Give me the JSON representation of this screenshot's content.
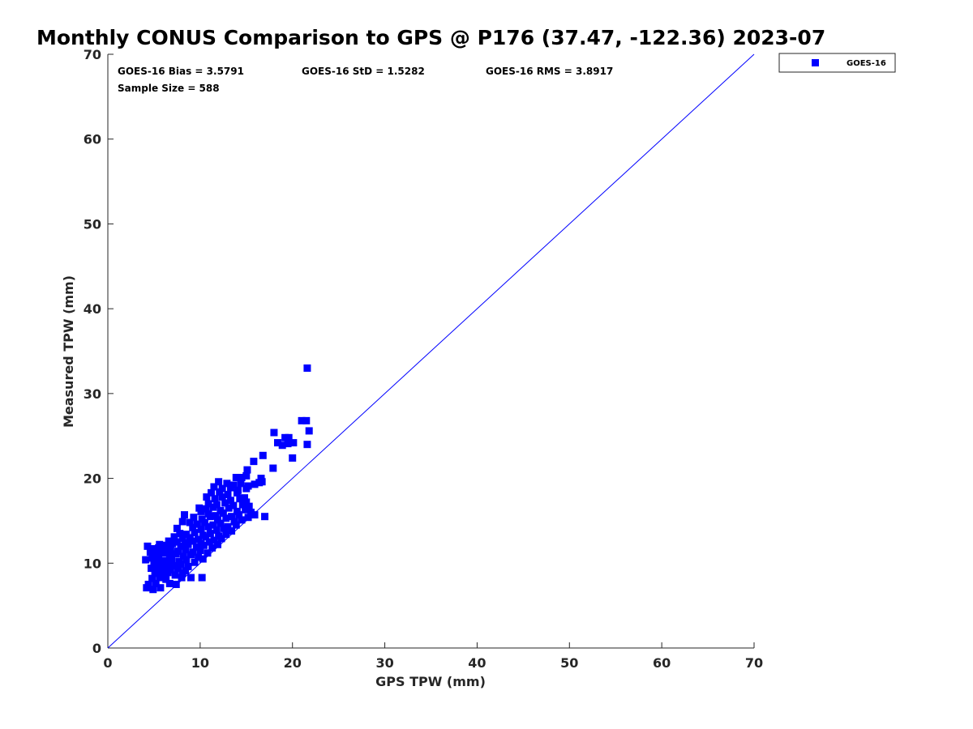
{
  "chart_data": {
    "type": "scatter",
    "title": "Monthly CONUS Comparison to GPS @ P176 (37.47, -122.36) 2023-07",
    "xlabel": "GPS TPW (mm)",
    "ylabel": "Measured TPW (mm)",
    "xlim": [
      0,
      70
    ],
    "ylim": [
      0,
      70
    ],
    "xticks": [
      "0",
      "10",
      "20",
      "30",
      "40",
      "50",
      "60",
      "70"
    ],
    "yticks": [
      "0",
      "10",
      "20",
      "30",
      "40",
      "50",
      "60",
      "70"
    ],
    "grid": false,
    "legend_position": "outside-top-right",
    "stats": {
      "bias": "GOES-16 Bias = 3.5791",
      "std": "GOES-16 StD = 1.5282",
      "rms": "GOES-16 RMS = 3.8917",
      "sample": "Sample Size = 588"
    },
    "reference_line": {
      "x": [
        0,
        70
      ],
      "y": [
        0,
        70
      ],
      "color": "#0000ff"
    },
    "series": [
      {
        "name": "GOES-16",
        "color": "#0000ff",
        "marker": "square",
        "points": [
          [
            21.6,
            33.0
          ],
          [
            21.0,
            26.8
          ],
          [
            21.5,
            26.8
          ],
          [
            21.8,
            25.6
          ],
          [
            18.0,
            25.4
          ],
          [
            19.2,
            24.8
          ],
          [
            19.6,
            24.8
          ],
          [
            18.4,
            24.2
          ],
          [
            19.5,
            24.1
          ],
          [
            20.1,
            24.2
          ],
          [
            18.9,
            23.9
          ],
          [
            21.6,
            24.0
          ],
          [
            16.8,
            22.7
          ],
          [
            20.0,
            22.4
          ],
          [
            15.8,
            22.0
          ],
          [
            17.9,
            21.2
          ],
          [
            15.1,
            21.0
          ],
          [
            13.9,
            20.1
          ],
          [
            14.5,
            20.1
          ],
          [
            15.0,
            20.3
          ],
          [
            16.6,
            20.0
          ],
          [
            16.7,
            19.6
          ],
          [
            12.0,
            19.6
          ],
          [
            12.9,
            19.4
          ],
          [
            13.6,
            19.2
          ],
          [
            14.4,
            19.4
          ],
          [
            15.2,
            19.1
          ],
          [
            15.9,
            19.3
          ],
          [
            16.4,
            19.5
          ],
          [
            11.5,
            19.0
          ],
          [
            12.4,
            18.8
          ],
          [
            13.3,
            18.9
          ],
          [
            14.1,
            18.6
          ],
          [
            15.0,
            18.8
          ],
          [
            11.2,
            18.3
          ],
          [
            12.1,
            18.4
          ],
          [
            13.0,
            18.1
          ],
          [
            14.0,
            18.3
          ],
          [
            14.8,
            17.7
          ],
          [
            10.7,
            17.8
          ],
          [
            11.6,
            17.6
          ],
          [
            12.4,
            17.8
          ],
          [
            13.3,
            17.4
          ],
          [
            14.3,
            17.6
          ],
          [
            15.0,
            17.2
          ],
          [
            10.9,
            17.0
          ],
          [
            11.8,
            16.9
          ],
          [
            12.7,
            17.1
          ],
          [
            13.6,
            16.8
          ],
          [
            14.6,
            16.9
          ],
          [
            15.3,
            16.7
          ],
          [
            9.9,
            16.5
          ],
          [
            10.6,
            16.4
          ],
          [
            11.4,
            16.6
          ],
          [
            12.2,
            16.2
          ],
          [
            13.1,
            16.5
          ],
          [
            14.0,
            16.1
          ],
          [
            14.9,
            16.3
          ],
          [
            15.5,
            16.0
          ],
          [
            10.1,
            16.1
          ],
          [
            10.9,
            15.8
          ],
          [
            11.7,
            15.6
          ],
          [
            12.5,
            15.9
          ],
          [
            13.4,
            15.5
          ],
          [
            14.2,
            15.7
          ],
          [
            15.2,
            15.4
          ],
          [
            15.9,
            15.7
          ],
          [
            17.0,
            15.5
          ],
          [
            9.3,
            15.4
          ],
          [
            10.2,
            15.2
          ],
          [
            11.1,
            15.5
          ],
          [
            11.9,
            15.1
          ],
          [
            12.8,
            15.3
          ],
          [
            13.7,
            14.9
          ],
          [
            14.5,
            15.1
          ],
          [
            8.3,
            15.7
          ],
          [
            8.1,
            14.9
          ],
          [
            8.9,
            14.8
          ],
          [
            9.7,
            14.6
          ],
          [
            10.5,
            14.8
          ],
          [
            11.4,
            14.5
          ],
          [
            12.2,
            14.7
          ],
          [
            13.0,
            14.3
          ],
          [
            13.9,
            14.5
          ],
          [
            7.5,
            14.1
          ],
          [
            9.2,
            14.2
          ],
          [
            10.1,
            14.0
          ],
          [
            10.9,
            14.3
          ],
          [
            11.8,
            13.9
          ],
          [
            12.6,
            14.1
          ],
          [
            13.4,
            13.8
          ],
          [
            7.8,
            13.5
          ],
          [
            8.5,
            13.4
          ],
          [
            9.4,
            13.6
          ],
          [
            10.3,
            13.3
          ],
          [
            11.1,
            13.5
          ],
          [
            12.0,
            13.2
          ],
          [
            12.8,
            13.4
          ],
          [
            7.2,
            13.1
          ],
          [
            8.1,
            12.9
          ],
          [
            8.9,
            13.0
          ],
          [
            9.8,
            12.8
          ],
          [
            10.6,
            13.1
          ],
          [
            11.5,
            12.7
          ],
          [
            12.3,
            12.9
          ],
          [
            6.6,
            12.6
          ],
          [
            7.5,
            12.5
          ],
          [
            8.4,
            12.4
          ],
          [
            9.2,
            12.6
          ],
          [
            10.1,
            12.3
          ],
          [
            11.0,
            12.5
          ],
          [
            11.9,
            12.2
          ],
          [
            5.6,
            12.2
          ],
          [
            6.3,
            12.1
          ],
          [
            7.0,
            12.3
          ],
          [
            7.9,
            12.0
          ],
          [
            8.7,
            12.2
          ],
          [
            9.6,
            11.9
          ],
          [
            10.4,
            12.1
          ],
          [
            11.3,
            11.8
          ],
          [
            4.3,
            12.0
          ],
          [
            4.9,
            11.7
          ],
          [
            5.5,
            11.8
          ],
          [
            6.1,
            11.5
          ],
          [
            6.8,
            11.7
          ],
          [
            7.6,
            11.4
          ],
          [
            8.4,
            11.6
          ],
          [
            9.2,
            11.3
          ],
          [
            10.0,
            11.5
          ],
          [
            10.8,
            11.2
          ],
          [
            4.6,
            11.3
          ],
          [
            5.3,
            11.1
          ],
          [
            6.0,
            11.2
          ],
          [
            6.7,
            10.9
          ],
          [
            7.4,
            11.1
          ],
          [
            8.2,
            10.8
          ],
          [
            9.0,
            11.0
          ],
          [
            9.8,
            10.7
          ],
          [
            4.1,
            10.4
          ],
          [
            4.8,
            10.6
          ],
          [
            5.5,
            10.5
          ],
          [
            6.2,
            10.3
          ],
          [
            6.9,
            10.5
          ],
          [
            7.7,
            10.2
          ],
          [
            8.5,
            10.4
          ],
          [
            9.4,
            10.1
          ],
          [
            10.3,
            10.5
          ],
          [
            5.0,
            10.0
          ],
          [
            5.7,
            9.8
          ],
          [
            6.4,
            10.0
          ],
          [
            7.1,
            9.7
          ],
          [
            7.9,
            9.9
          ],
          [
            8.7,
            9.6
          ],
          [
            4.7,
            9.4
          ],
          [
            5.4,
            9.3
          ],
          [
            6.1,
            9.5
          ],
          [
            6.8,
            9.2
          ],
          [
            7.6,
            9.4
          ],
          [
            8.4,
            9.1
          ],
          [
            5.1,
            8.8
          ],
          [
            5.8,
            8.7
          ],
          [
            6.5,
            8.9
          ],
          [
            7.3,
            8.6
          ],
          [
            8.1,
            8.8
          ],
          [
            4.8,
            8.2
          ],
          [
            5.6,
            8.3
          ],
          [
            6.3,
            8.1
          ],
          [
            8.0,
            8.3
          ],
          [
            9.0,
            8.3
          ],
          [
            10.2,
            8.3
          ],
          [
            4.4,
            7.5
          ],
          [
            5.2,
            7.6
          ],
          [
            6.7,
            7.6
          ],
          [
            7.4,
            7.5
          ],
          [
            4.2,
            7.1
          ],
          [
            4.9,
            6.9
          ],
          [
            5.7,
            7.1
          ]
        ]
      }
    ]
  }
}
